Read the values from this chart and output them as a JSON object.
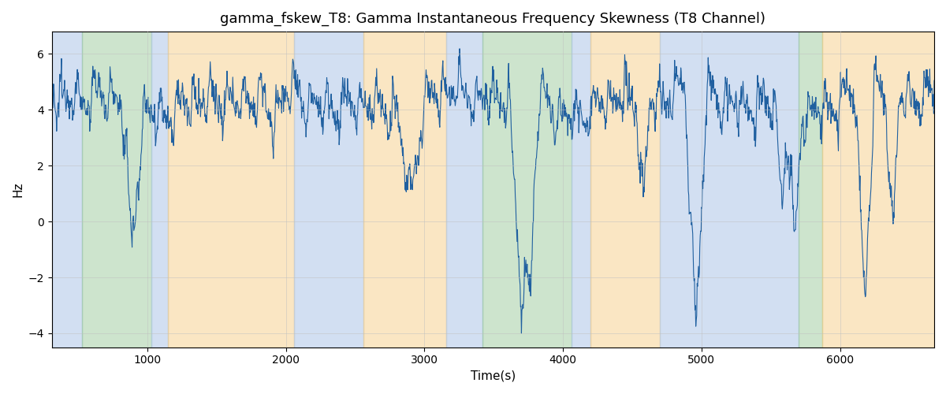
{
  "title": "gamma_fskew_T8: Gamma Instantaneous Frequency Skewness (T8 Channel)",
  "xlabel": "Time(s)",
  "ylabel": "Hz",
  "xlim": [
    310,
    6680
  ],
  "ylim": [
    -4.5,
    6.8
  ],
  "yticks": [
    -4,
    -2,
    0,
    2,
    4,
    6
  ],
  "line_color": "#2060a0",
  "line_width": 0.8,
  "grid_color": "#c0c0c0",
  "colored_regions": [
    {
      "xmin": 310,
      "xmax": 530,
      "color": "#aec6e8",
      "alpha": 0.55
    },
    {
      "xmin": 530,
      "xmax": 1030,
      "color": "#90c490",
      "alpha": 0.45
    },
    {
      "xmin": 1030,
      "xmax": 1150,
      "color": "#aec6e8",
      "alpha": 0.55
    },
    {
      "xmin": 1150,
      "xmax": 2060,
      "color": "#f5c97a",
      "alpha": 0.45
    },
    {
      "xmin": 2060,
      "xmax": 2560,
      "color": "#aec6e8",
      "alpha": 0.55
    },
    {
      "xmin": 2560,
      "xmax": 3160,
      "color": "#f5c97a",
      "alpha": 0.45
    },
    {
      "xmin": 3160,
      "xmax": 3420,
      "color": "#aec6e8",
      "alpha": 0.55
    },
    {
      "xmin": 3420,
      "xmax": 4060,
      "color": "#90c490",
      "alpha": 0.45
    },
    {
      "xmin": 4060,
      "xmax": 4200,
      "color": "#aec6e8",
      "alpha": 0.55
    },
    {
      "xmin": 4200,
      "xmax": 4700,
      "color": "#f5c97a",
      "alpha": 0.45
    },
    {
      "xmin": 4700,
      "xmax": 5700,
      "color": "#aec6e8",
      "alpha": 0.55
    },
    {
      "xmin": 5700,
      "xmax": 5870,
      "color": "#90c490",
      "alpha": 0.45
    },
    {
      "xmin": 5870,
      "xmax": 6680,
      "color": "#f5c97a",
      "alpha": 0.45
    }
  ],
  "seed": 12345,
  "n_points": 2000
}
